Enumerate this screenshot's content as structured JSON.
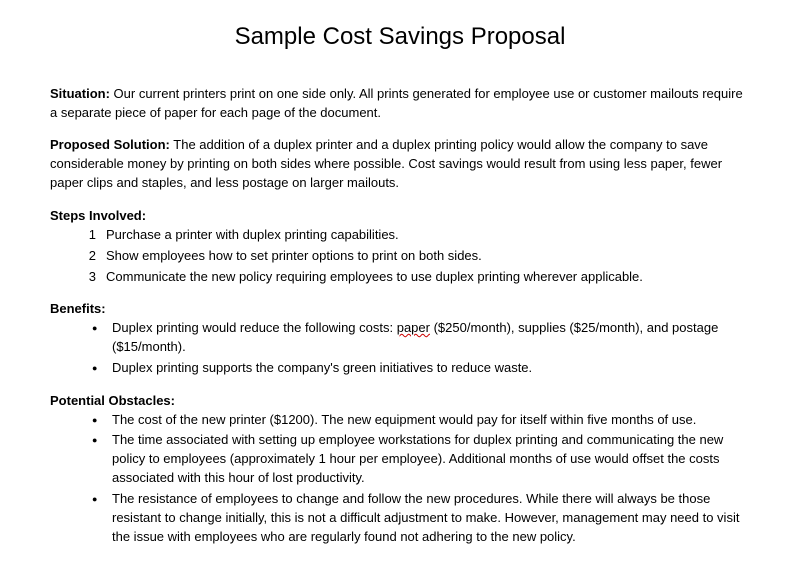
{
  "title": "Sample Cost Savings Proposal",
  "situation": {
    "label": "Situation:",
    "text": " Our current printers print on one side only. All prints generated for employee use or customer mailouts require a separate piece of paper for each page of the document."
  },
  "proposed": {
    "label": "Proposed Solution:",
    "text": " The addition of a duplex printer and a duplex printing policy would allow the company to save considerable money by printing on both sides where possible. Cost savings would result from using less paper, fewer paper clips and staples, and less postage on larger mailouts."
  },
  "steps": {
    "label": "Steps Involved:",
    "items": [
      "Purchase a printer with duplex printing capabilities.",
      "Show employees how to set printer options to print on both sides.",
      "Communicate the new policy requiring employees to use duplex printing wherever applicable."
    ]
  },
  "benefits": {
    "label": "Benefits:",
    "item1_pre": "Duplex printing would reduce the following costs: ",
    "item1_spell": "paper",
    "item1_post": " ($250/month), supplies ($25/month), and postage ($15/month).",
    "item2": "Duplex printing supports the company's green initiatives to reduce waste."
  },
  "obstacles": {
    "label": "Potential Obstacles:",
    "items": [
      "The cost of the new printer ($1200). The new equipment would pay for itself within five months of use.",
      "The time associated with setting up employee workstations for duplex printing and communicating the new policy to employees (approximately 1 hour per employee). Additional months of use would offset the costs associated with this hour of lost productivity.",
      "The resistance of employees to change and follow the new procedures. While there will always be those resistant to change initially, this is not a difficult adjustment to make. However, management may need to visit the issue with employees who are regularly found not adhering to the new policy."
    ]
  }
}
